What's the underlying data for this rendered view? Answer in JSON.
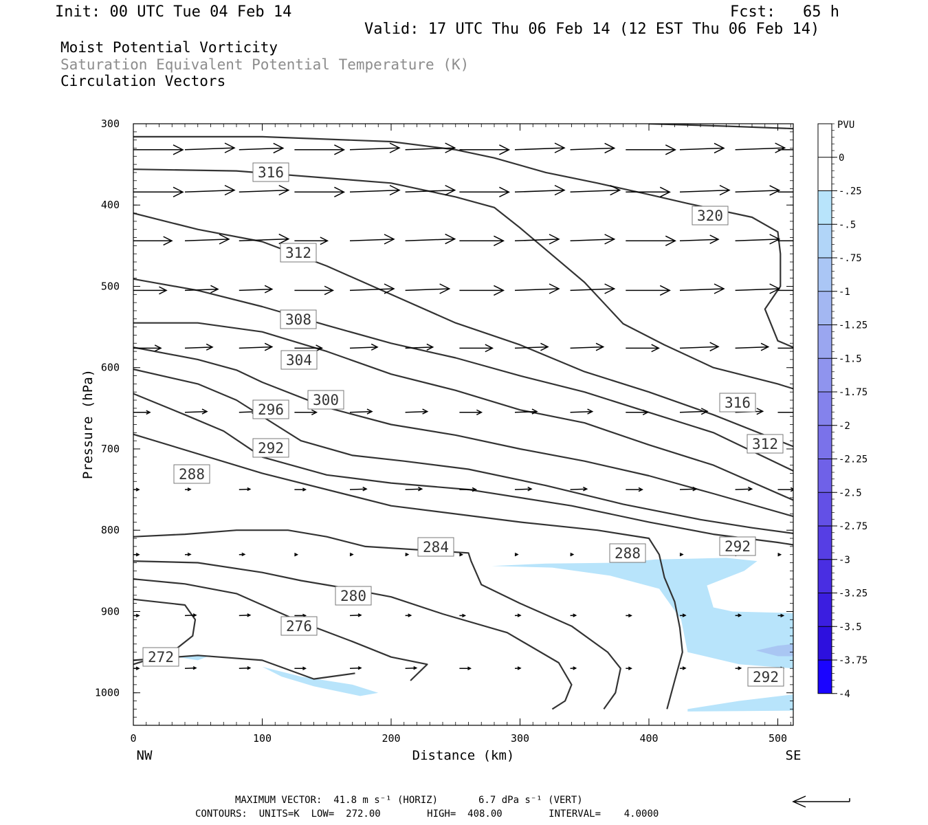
{
  "header": {
    "init": "Init: 00 UTC Tue 04 Feb 14",
    "fcst": "Fcst:   65 h",
    "valid": "Valid: 17 UTC Thu 06 Feb 14 (12 EST Thu 06 Feb 14)",
    "field1": "Moist Potential Vorticity",
    "field2": "Saturation Equivalent Potential Temperature (K)",
    "field3": "Circulation Vectors"
  },
  "footer": {
    "line1": "MAXIMUM VECTOR:  41.8 m s⁻¹ (HORIZ)       6.7 dPa s⁻¹ (VERT)",
    "line2": "CONTOURS:  UNITS=K  LOW=  272.00        HIGH=  408.00        INTERVAL=    4.0000"
  },
  "colors": {
    "contour": "#333333",
    "mpv_fill": "#b8e4fb",
    "mpv_fill_dark": "#a9c6f3"
  },
  "chart_data": {
    "type": "contour-cross-section",
    "xlabel": "Distance (km)",
    "ylabel": "Pressure (hPa)",
    "xlim": [
      0,
      512
    ],
    "ylim": [
      1040,
      300
    ],
    "x_ticks": [
      "0",
      "100",
      "200",
      "300",
      "400",
      "500"
    ],
    "y_ticks": [
      "300",
      "400",
      "500",
      "600",
      "700",
      "800",
      "900",
      "1000"
    ],
    "endpoint_labels": [
      "NW",
      "SE"
    ],
    "colorbar": {
      "title": "PVU",
      "ticks": [
        "0",
        "-.25",
        "-.5",
        "-.75",
        "-1",
        "-1.25",
        "-1.5",
        "-1.75",
        "-2",
        "-2.25",
        "-2.5",
        "-2.75",
        "-3",
        "-3.25",
        "-3.5",
        "-3.75",
        "-4"
      ],
      "colors": [
        "#ffffff",
        "#ffffff",
        "#b8e4fb",
        "#b1d5f8",
        "#aac6f5",
        "#a3b7f2",
        "#9aa6f0",
        "#8f94ee",
        "#8482ec",
        "#7a72ea",
        "#6f61e8",
        "#6350e6",
        "#563ee4",
        "#492ee2",
        "#3b1ee0",
        "#2d10de",
        "#1a04ff"
      ]
    },
    "contour_labels": [
      "272",
      "276",
      "280",
      "284",
      "288",
      "288",
      "292",
      "292",
      "292",
      "296",
      "300",
      "304",
      "308",
      "312",
      "312",
      "316",
      "316",
      "320"
    ],
    "contour_lines": [
      {
        "x": [
          0,
          50,
          100,
          140,
          172
        ],
        "p": [
          960,
          954,
          960,
          983,
          976
        ]
      },
      {
        "x": [
          0,
          40,
          48,
          46,
          30,
          0
        ],
        "p": [
          885,
          892,
          910,
          930,
          950,
          965
        ]
      },
      {
        "x": [
          0,
          40,
          80,
          130,
          170,
          200,
          228,
          215
        ],
        "p": [
          860,
          866,
          878,
          913,
          937,
          956,
          965,
          985
        ]
      },
      {
        "x": [
          0,
          50,
          100,
          130,
          160,
          200,
          240,
          290,
          330,
          340,
          335,
          325
        ],
        "p": [
          838,
          840,
          852,
          862,
          870,
          882,
          903,
          926,
          963,
          990,
          1010,
          1020
        ]
      },
      {
        "x": [
          0,
          40,
          80,
          120,
          150,
          180,
          260,
          262,
          270,
          300,
          340,
          368,
          378,
          374,
          365
        ],
        "p": [
          808,
          805,
          800,
          800,
          808,
          820,
          828,
          838,
          867,
          890,
          918,
          950,
          970,
          1000,
          1020
        ]
      },
      {
        "x": [
          0,
          100,
          200,
          300,
          360,
          400,
          408,
          412,
          420,
          424,
          426,
          420,
          414
        ],
        "p": [
          682,
          730,
          770,
          790,
          800,
          810,
          830,
          858,
          888,
          920,
          950,
          985,
          1020
        ]
      },
      {
        "x": [
          0,
          40,
          70,
          100,
          150,
          200,
          260,
          340,
          400,
          450,
          500,
          512
        ],
        "p": [
          632,
          658,
          678,
          710,
          732,
          742,
          750,
          770,
          790,
          805,
          815,
          818
        ]
      },
      {
        "x": [
          0,
          50,
          80,
          100,
          130,
          170,
          210,
          260,
          320,
          380,
          440,
          480,
          512
        ],
        "p": [
          602,
          620,
          640,
          660,
          690,
          708,
          715,
          725,
          745,
          768,
          787,
          797,
          804
        ]
      },
      {
        "x": [
          0,
          50,
          80,
          100,
          150,
          200,
          250,
          300,
          350,
          400,
          450,
          512
        ],
        "p": [
          575,
          590,
          603,
          618,
          649,
          670,
          683,
          700,
          715,
          733,
          755,
          783
        ]
      },
      {
        "x": [
          0,
          50,
          100,
          150,
          200,
          250,
          300,
          350,
          400,
          450,
          512
        ],
        "p": [
          545,
          545,
          556,
          580,
          608,
          628,
          652,
          668,
          695,
          720,
          763
        ]
      },
      {
        "x": [
          0,
          50,
          100,
          150,
          200,
          250,
          300,
          350,
          400,
          450,
          512
        ],
        "p": [
          491,
          505,
          525,
          548,
          570,
          588,
          610,
          630,
          655,
          680,
          727
        ]
      },
      {
        "x": [
          0,
          50,
          100,
          150,
          200,
          250,
          300,
          350,
          400,
          450,
          512
        ],
        "p": [
          410,
          430,
          445,
          475,
          510,
          545,
          572,
          605,
          630,
          658,
          697
        ]
      },
      {
        "x": [
          0,
          80,
          160,
          200,
          250,
          280,
          300,
          350,
          380,
          412,
          450,
          500,
          512
        ],
        "p": [
          356,
          358,
          368,
          373,
          390,
          403,
          428,
          495,
          546,
          572,
          600,
          620,
          626
        ]
      },
      {
        "x": [
          0,
          100,
          200,
          250,
          280,
          320,
          360,
          400,
          430,
          480,
          500,
          502,
          502,
          490,
          500,
          512
        ],
        "p": [
          316,
          316,
          322,
          332,
          342,
          360,
          373,
          387,
          398,
          415,
          433,
          460,
          500,
          528,
          567,
          575
        ]
      },
      {
        "x": [
          400,
          460,
          512
        ],
        "p": [
          300,
          303,
          306
        ]
      }
    ],
    "mpv_regions": [
      {
        "level": "-.25 to -.5",
        "x": [
          278,
          320,
          380,
          405,
          460,
          484,
          474,
          445,
          450,
          465,
          512,
          512,
          470,
          430,
          425,
          408,
          370,
          325,
          278
        ],
        "p": [
          844,
          841,
          840,
          836,
          834,
          838,
          850,
          868,
          895,
          900,
          902,
          970,
          965,
          950,
          910,
          872,
          856,
          846,
          844
        ]
      },
      {
        "level": "-.25 to -.5",
        "x": [
          100,
          130,
          170,
          190,
          176,
          140,
          115,
          100
        ],
        "p": [
          968,
          980,
          990,
          1000,
          1004,
          992,
          980,
          968
        ]
      },
      {
        "level": "-.25 to -.5",
        "x": [
          30,
          60,
          50,
          30
        ],
        "p": [
          955,
          954,
          960,
          955
        ]
      },
      {
        "level": "-.25 to -.5",
        "x": [
          430,
          470,
          512,
          512,
          430
        ],
        "p": [
          1020,
          1010,
          1002,
          1022,
          1023
        ]
      },
      {
        "level": "-.5 to -.75",
        "x": [
          483,
          500,
          512,
          512,
          500,
          483
        ],
        "p": [
          948,
          942,
          940,
          955,
          955,
          948
        ]
      }
    ],
    "vectors": [
      {
        "x": [
          0,
          40,
          82,
          125,
          168,
          211,
          253,
          296,
          339,
          382,
          424,
          467,
          500
        ],
        "p": 332,
        "u": [
          0.9,
          0.9,
          0.8,
          0.9,
          0.9,
          0.9,
          0.9,
          0.9,
          0.8,
          0.9,
          0.8,
          0.9,
          0.8
        ]
      },
      {
        "x": [
          0,
          40,
          82,
          125,
          168,
          211,
          253,
          296,
          339,
          382,
          424,
          467,
          500
        ],
        "p": 384,
        "u": [
          0.9,
          0.9,
          0.9,
          0.9,
          0.9,
          0.9,
          0.9,
          0.9,
          0.9,
          0.8,
          0.9,
          0.8,
          0.8
        ]
      },
      {
        "x": [
          0,
          40,
          82,
          125,
          168,
          211,
          253,
          296,
          339,
          382,
          424,
          467,
          500
        ],
        "p": 444,
        "u": [
          0.7,
          0.8,
          0.9,
          0.6,
          0.8,
          0.9,
          0.8,
          0.8,
          0.8,
          0.9,
          0.7,
          0.8,
          0.7
        ]
      },
      {
        "x": [
          0,
          40,
          82,
          125,
          168,
          211,
          253,
          296,
          339,
          382,
          424,
          467,
          500
        ],
        "p": 505,
        "u": [
          0.6,
          0.6,
          0.6,
          0.7,
          0.8,
          0.8,
          0.8,
          0.8,
          0.8,
          0.8,
          0.8,
          0.8,
          0.7
        ]
      },
      {
        "x": [
          0,
          40,
          82,
          125,
          168,
          211,
          253,
          296,
          339,
          382,
          424,
          467,
          500
        ],
        "p": 576,
        "u": [
          0.5,
          0.5,
          0.6,
          0.5,
          0.5,
          0.5,
          0.6,
          0.6,
          0.6,
          0.6,
          0.7,
          0.6,
          0.6
        ]
      },
      {
        "x": [
          0,
          40,
          82,
          125,
          168,
          211,
          253,
          296,
          339,
          382,
          424,
          467,
          500
        ],
        "p": 655,
        "u": [
          0.3,
          0.4,
          0.3,
          0.4,
          0.4,
          0.4,
          0.4,
          0.4,
          0.4,
          0.4,
          0.5,
          0.5,
          0.4
        ]
      },
      {
        "x": [
          0,
          40,
          82,
          125,
          168,
          211,
          253,
          296,
          339,
          382,
          424,
          467,
          500
        ],
        "p": 750,
        "u": [
          0.1,
          0.1,
          0.2,
          0.2,
          0.3,
          0.3,
          0.3,
          0.3,
          0.3,
          0.3,
          0.3,
          0.3,
          0.3
        ]
      },
      {
        "x": [
          0,
          40,
          82,
          125,
          168,
          211,
          253,
          296,
          339,
          382,
          424,
          467,
          500
        ],
        "p": 830,
        "u": [
          0.1,
          0.1,
          0.1,
          0.05,
          0.05,
          0.05,
          0.05,
          0.05,
          0.05,
          0.05,
          0.05,
          0.05,
          0.05
        ]
      },
      {
        "x": [
          0,
          40,
          82,
          125,
          168,
          211,
          253,
          296,
          339,
          382,
          424,
          467,
          500
        ],
        "p": 905,
        "u": [
          0.1,
          0.2,
          0.2,
          0.2,
          0.2,
          0.1,
          0.1,
          0.1,
          0.1,
          0.1,
          0.1,
          0.1,
          0.1
        ]
      },
      {
        "x": [
          0,
          40,
          82,
          125,
          168,
          211,
          253,
          296,
          339,
          382,
          424,
          467,
          500
        ],
        "p": 970,
        "u": [
          0.1,
          0.2,
          0.2,
          0.2,
          0.2,
          0.2,
          0.2,
          0.1,
          0.1,
          0.1,
          0.1,
          0.1,
          0.1
        ]
      }
    ]
  }
}
